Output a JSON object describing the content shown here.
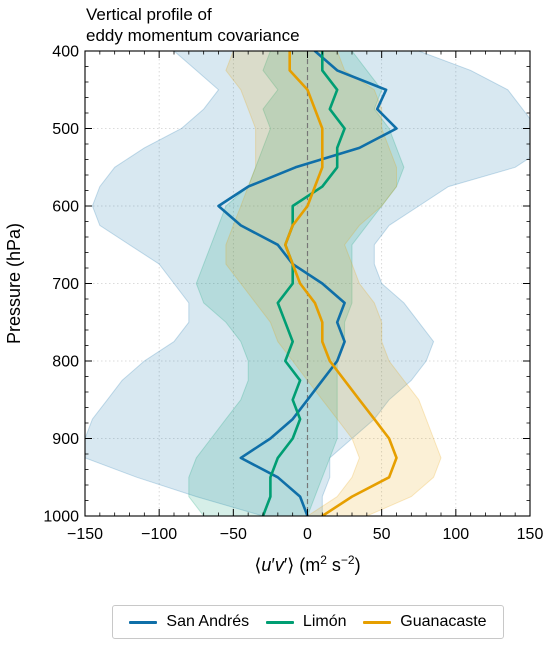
{
  "chart_data": {
    "type": "line",
    "title_lines": [
      "Vertical profile of",
      "eddy momentum covariance"
    ],
    "ylabel": "Pressure (hPa)",
    "xlabel_parts": [
      "⟨",
      "u",
      "′",
      "v",
      "′",
      "⟩ (m",
      "2",
      " s",
      "−2",
      ")"
    ],
    "xlim": [
      -150,
      150
    ],
    "ylim": [
      1000,
      400
    ],
    "y_inverted": true,
    "grid": true,
    "zero_reference_line": true,
    "xticks": [
      -150,
      -100,
      -50,
      0,
      50,
      100,
      150
    ],
    "xtick_labels": [
      "−150",
      "−100",
      "−50",
      "0",
      "50",
      "100",
      "150"
    ],
    "yticks": [
      400,
      500,
      600,
      700,
      800,
      900,
      1000
    ],
    "ytick_labels": [
      "400",
      "500",
      "600",
      "700",
      "800",
      "900",
      "1000"
    ],
    "legend_position": "bottom-center",
    "series": [
      {
        "name": "San Andrés",
        "color": "#0f6fa8",
        "pressure": [
          400,
          425,
          450,
          475,
          500,
          525,
          550,
          575,
          600,
          625,
          650,
          675,
          700,
          725,
          750,
          775,
          800,
          825,
          850,
          875,
          900,
          925,
          950,
          975,
          1000
        ],
        "mean": [
          5,
          20,
          53,
          47,
          60,
          35,
          -8,
          -40,
          -60,
          -45,
          -20,
          -10,
          10,
          25,
          20,
          25,
          20,
          10,
          0,
          -10,
          -25,
          -45,
          -20,
          -5,
          0
        ],
        "lower": [
          -90,
          -75,
          -60,
          -70,
          -85,
          -110,
          -130,
          -140,
          -145,
          -140,
          -120,
          -100,
          -90,
          -80,
          -80,
          -90,
          -110,
          -125,
          -135,
          -145,
          -150,
          -150,
          -115,
          -75,
          -30
        ],
        "upper": [
          75,
          110,
          135,
          145,
          155,
          160,
          140,
          95,
          75,
          55,
          45,
          45,
          50,
          65,
          75,
          85,
          80,
          70,
          55,
          45,
          30,
          15,
          15,
          10,
          10
        ]
      },
      {
        "name": "Limón",
        "color": "#009e73",
        "pressure": [
          400,
          425,
          450,
          475,
          500,
          525,
          550,
          575,
          600,
          625,
          650,
          675,
          700,
          725,
          750,
          775,
          800,
          825,
          850,
          875,
          900,
          925,
          950,
          975,
          1000
        ],
        "mean": [
          10,
          10,
          20,
          15,
          25,
          20,
          20,
          10,
          -10,
          -10,
          -15,
          -10,
          -10,
          -20,
          -15,
          -10,
          -15,
          -5,
          -10,
          -5,
          -10,
          -20,
          -25,
          -25,
          -30
        ],
        "lower": [
          -25,
          -30,
          -20,
          -30,
          -25,
          -30,
          -35,
          -40,
          -55,
          -60,
          -65,
          -70,
          -75,
          -70,
          -55,
          -45,
          -40,
          -40,
          -45,
          -55,
          -65,
          -75,
          -80,
          -80,
          -70
        ],
        "upper": [
          30,
          40,
          50,
          45,
          55,
          60,
          65,
          60,
          50,
          40,
          30,
          30,
          30,
          30,
          25,
          25,
          20,
          20,
          20,
          20,
          20,
          15,
          10,
          5,
          0
        ]
      },
      {
        "name": "Guanacaste",
        "color": "#e69f00",
        "pressure": [
          400,
          425,
          450,
          475,
          500,
          525,
          550,
          575,
          600,
          625,
          650,
          675,
          700,
          725,
          750,
          775,
          800,
          825,
          850,
          875,
          900,
          925,
          950,
          975,
          1000
        ],
        "mean": [
          -12,
          -12,
          0,
          5,
          10,
          10,
          10,
          5,
          0,
          -10,
          -15,
          -10,
          -5,
          5,
          10,
          10,
          15,
          25,
          35,
          45,
          55,
          60,
          55,
          30,
          10
        ],
        "lower": [
          -50,
          -55,
          -45,
          -40,
          -35,
          -35,
          -35,
          -40,
          -45,
          -50,
          -55,
          -55,
          -45,
          -35,
          -25,
          -20,
          -10,
          0,
          10,
          20,
          30,
          35,
          30,
          20,
          0
        ],
        "upper": [
          20,
          25,
          45,
          50,
          50,
          55,
          60,
          60,
          50,
          35,
          25,
          30,
          35,
          45,
          50,
          50,
          55,
          65,
          75,
          80,
          85,
          90,
          85,
          70,
          40
        ]
      }
    ]
  }
}
